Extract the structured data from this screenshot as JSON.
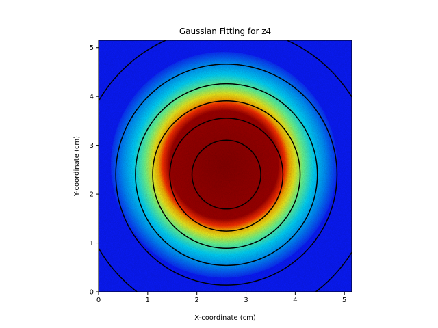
{
  "chart_data": {
    "type": "heatmap",
    "title": "Gaussian Fitting for z4",
    "xlabel": "X-coordinate (cm)",
    "ylabel": "Y-coordinate (cm)",
    "xlim": [
      0,
      5.15
    ],
    "ylim": [
      0,
      5.15
    ],
    "xticks": [
      "0",
      "1",
      "2",
      "3",
      "4",
      "5"
    ],
    "yticks": [
      "0",
      "1",
      "2",
      "3",
      "4",
      "5"
    ],
    "colormap": "jet",
    "heatmap": {
      "center": [
        2.55,
        2.6
      ],
      "core_radius": 1.2,
      "halo_radius": 2.3,
      "background_color": "#0a1cff"
    },
    "contours": {
      "center": [
        2.6,
        2.4
      ],
      "radii": [
        0.7,
        1.15,
        1.5,
        1.85,
        2.25,
        3.0
      ],
      "color": "#000000"
    },
    "grid": false,
    "legend": "none"
  }
}
